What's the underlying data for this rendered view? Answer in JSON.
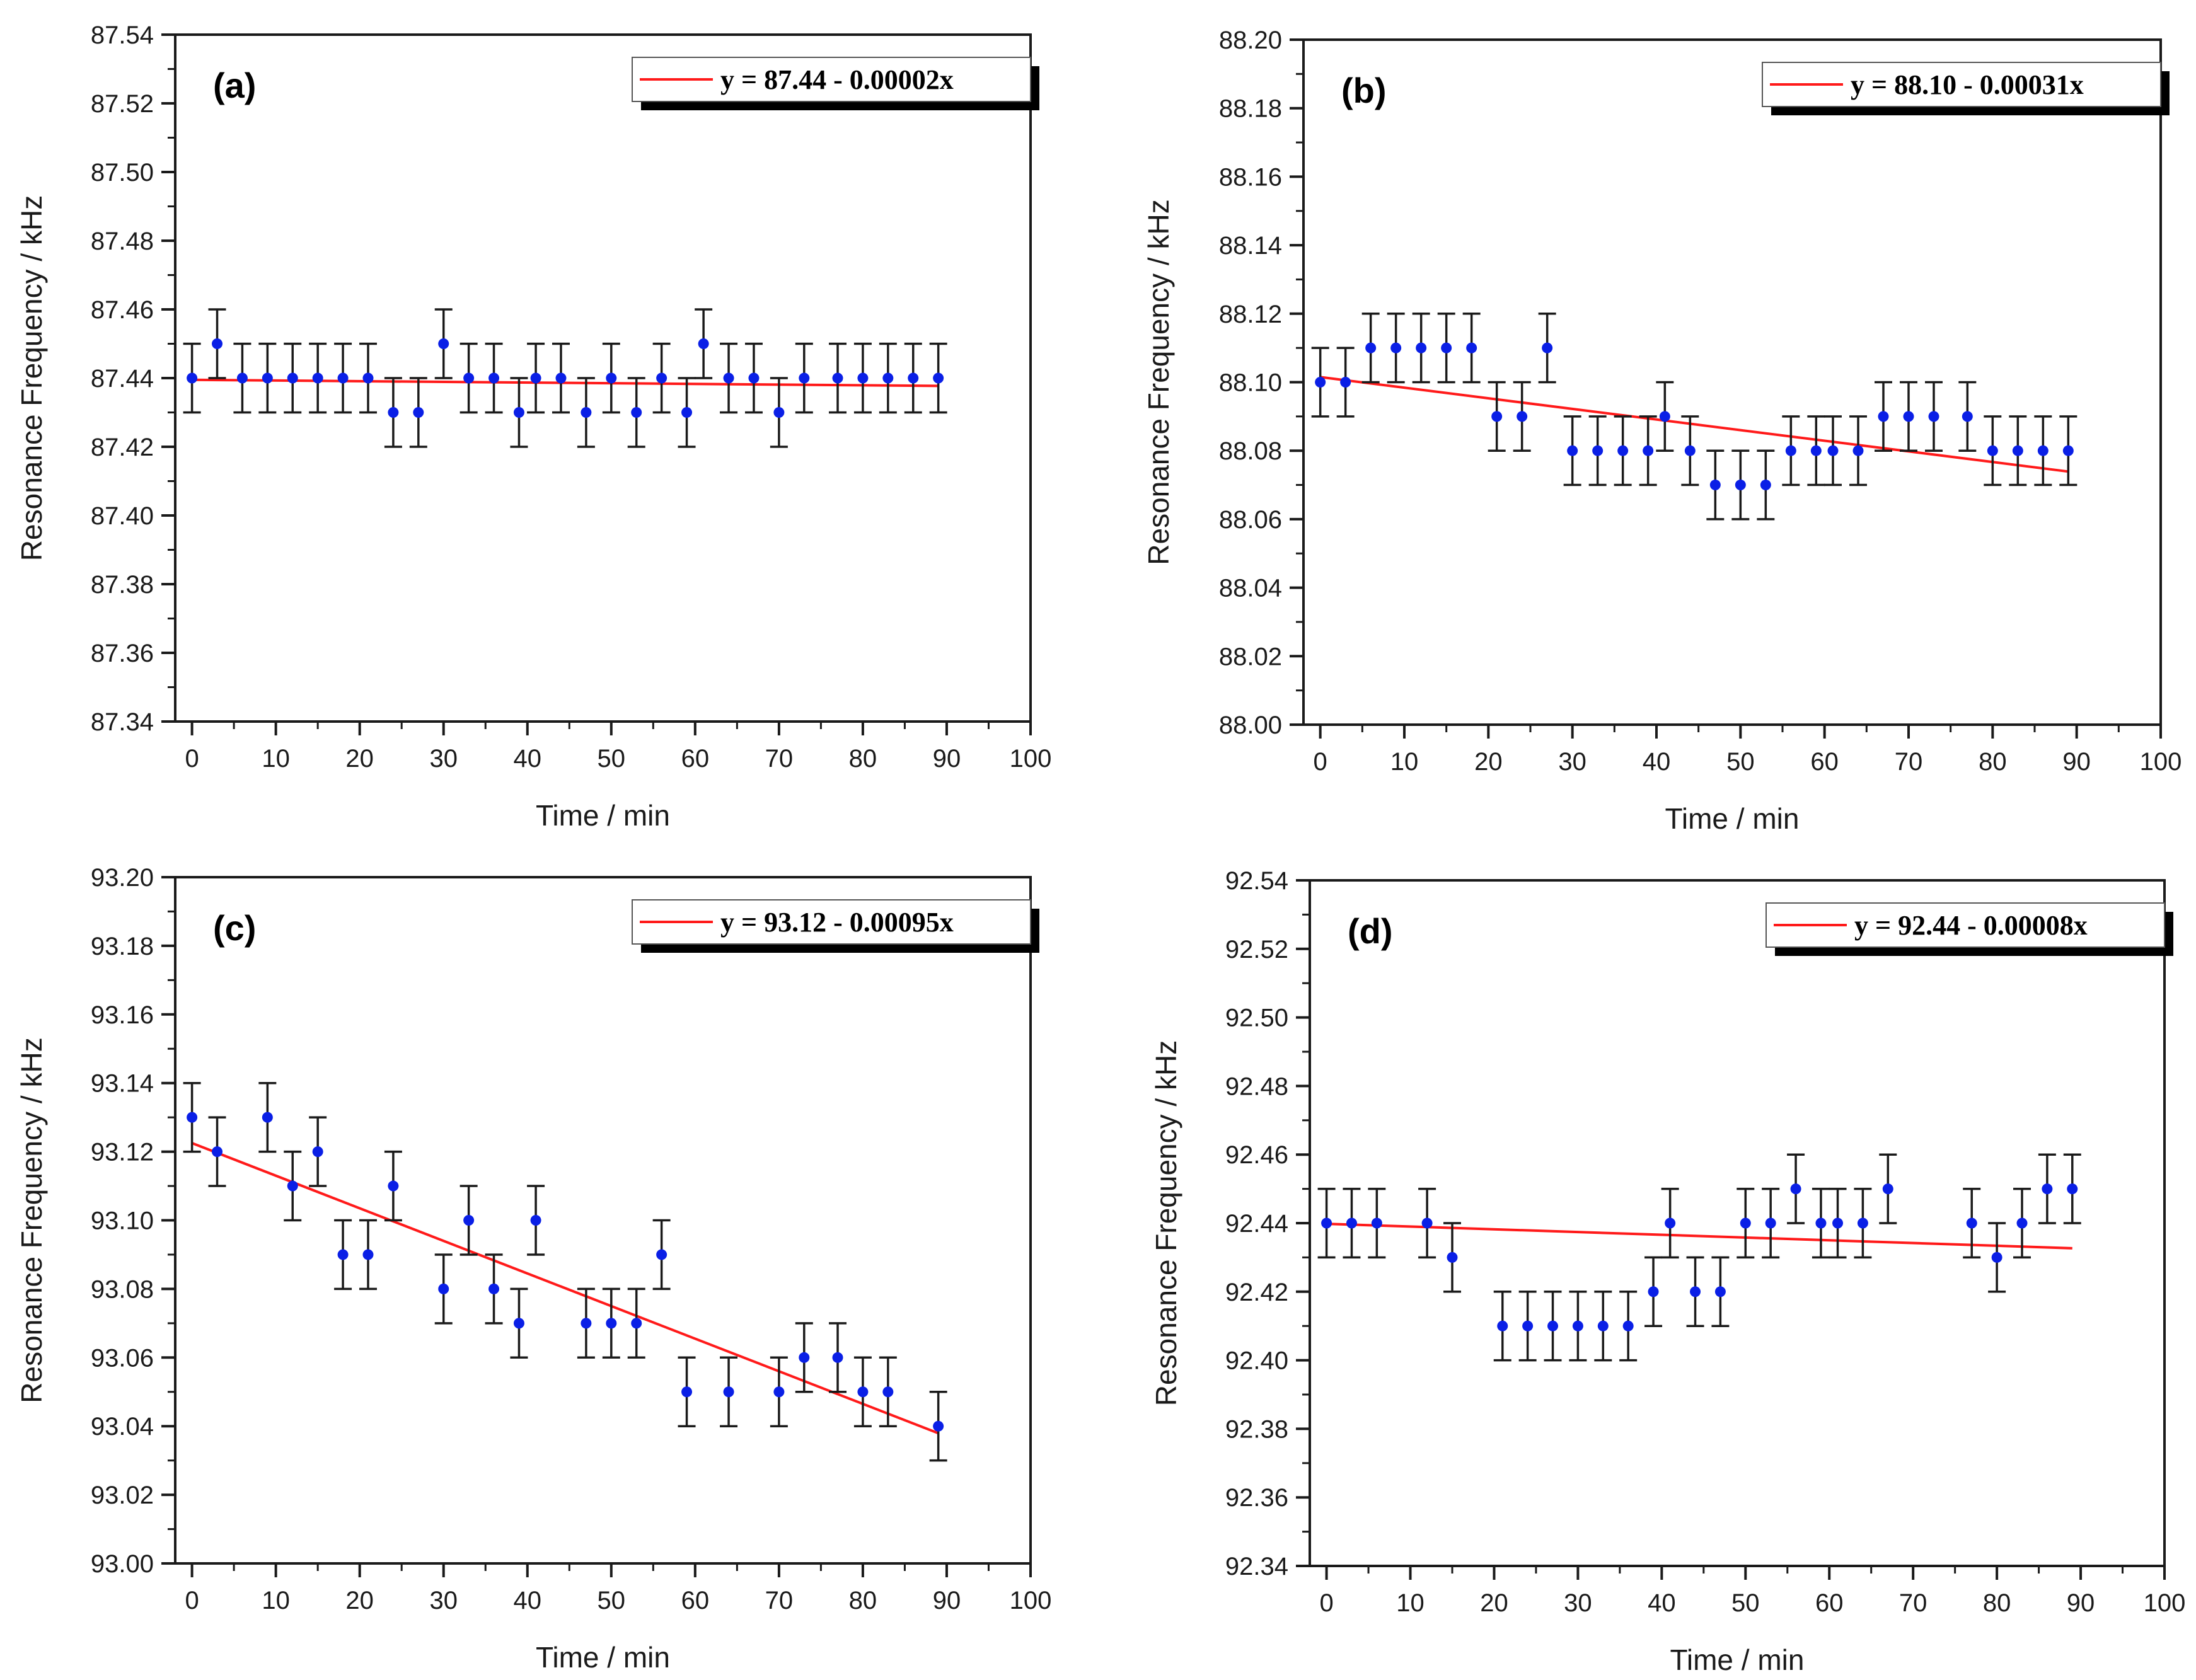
{
  "figure": {
    "background": "#ffffff"
  },
  "colors": {
    "point": "#0a1fe6",
    "fit": "#ff1a1a",
    "error": "#1a1a1a",
    "axis": "#1a1a1a"
  },
  "chart_data": [
    {
      "type": "scatter",
      "panel": "(a)",
      "xlabel": "Time / min",
      "ylabel": "Resonance Frequency / kHz",
      "xlim": [
        0,
        100
      ],
      "ylim": [
        87.34,
        87.54
      ],
      "xticks": [
        "0",
        "10",
        "20",
        "30",
        "40",
        "50",
        "60",
        "70",
        "80",
        "90",
        "100"
      ],
      "yticks": [
        "87.34",
        "87.36",
        "87.38",
        "87.40",
        "87.42",
        "87.44",
        "87.46",
        "87.48",
        "87.50",
        "87.52",
        "87.54"
      ],
      "error": 0.01,
      "fit": {
        "label": "y = 87.44 - 0.00002x",
        "intercept": 87.4395,
        "slope": -2e-05,
        "x": [
          0,
          89
        ]
      },
      "x": [
        0,
        3,
        6,
        9,
        12,
        15,
        18,
        21,
        24,
        27,
        30,
        33,
        36,
        39,
        41,
        44,
        47,
        50,
        53,
        56,
        59,
        61,
        64,
        67,
        70,
        73,
        77,
        80,
        83,
        86,
        89
      ],
      "y": [
        87.44,
        87.45,
        87.44,
        87.44,
        87.44,
        87.44,
        87.44,
        87.44,
        87.43,
        87.43,
        87.45,
        87.44,
        87.44,
        87.43,
        87.44,
        87.44,
        87.43,
        87.44,
        87.43,
        87.44,
        87.43,
        87.45,
        87.44,
        87.44,
        87.43,
        87.44,
        87.44,
        87.44,
        87.44,
        87.44,
        87.44
      ]
    },
    {
      "type": "scatter",
      "panel": "(b)",
      "xlabel": "Time / min",
      "ylabel": "Resonance Frequency / kHz",
      "xlim": [
        0,
        100
      ],
      "ylim": [
        88.0,
        88.2
      ],
      "xticks": [
        "0",
        "10",
        "20",
        "30",
        "40",
        "50",
        "60",
        "70",
        "80",
        "90",
        "100"
      ],
      "yticks": [
        "88.00",
        "88.02",
        "88.04",
        "88.06",
        "88.08",
        "88.10",
        "88.12",
        "88.14",
        "88.16",
        "88.18",
        "88.20"
      ],
      "error": 0.01,
      "fit": {
        "label": "y = 88.10 - 0.00031x",
        "intercept": 88.1015,
        "slope": -0.00031,
        "x": [
          0,
          89
        ]
      },
      "x": [
        0,
        3,
        6,
        9,
        12,
        15,
        18,
        21,
        24,
        27,
        30,
        33,
        36,
        39,
        41,
        44,
        47,
        50,
        53,
        56,
        59,
        61,
        64,
        67,
        70,
        73,
        77,
        80,
        83,
        86,
        89
      ],
      "y": [
        88.1,
        88.1,
        88.11,
        88.11,
        88.11,
        88.11,
        88.11,
        88.09,
        88.09,
        88.11,
        88.08,
        88.08,
        88.08,
        88.08,
        88.09,
        88.08,
        88.07,
        88.07,
        88.07,
        88.08,
        88.08,
        88.08,
        88.08,
        88.09,
        88.09,
        88.09,
        88.09,
        88.08,
        88.08,
        88.08,
        88.08
      ]
    },
    {
      "type": "scatter",
      "panel": "(c)",
      "xlabel": "Time / min",
      "ylabel": "Resonance Frequency / kHz",
      "xlim": [
        0,
        100
      ],
      "ylim": [
        93.0,
        93.2
      ],
      "xticks": [
        "0",
        "10",
        "20",
        "30",
        "40",
        "50",
        "60",
        "70",
        "80",
        "90",
        "100"
      ],
      "yticks": [
        "93.00",
        "93.02",
        "93.04",
        "93.06",
        "93.08",
        "93.10",
        "93.12",
        "93.14",
        "93.16",
        "93.18",
        "93.20"
      ],
      "error": 0.01,
      "fit": {
        "label": "y = 93.12 - 0.00095x",
        "intercept": 93.1225,
        "slope": -0.00095,
        "x": [
          0,
          89
        ]
      },
      "x": [
        0,
        3,
        9,
        12,
        15,
        18,
        21,
        24,
        30,
        33,
        36,
        39,
        41,
        47,
        50,
        53,
        56,
        59,
        64,
        70,
        73,
        77,
        80,
        83,
        89
      ],
      "y": [
        93.13,
        93.12,
        93.13,
        93.11,
        93.12,
        93.09,
        93.09,
        93.11,
        93.08,
        93.1,
        93.08,
        93.07,
        93.1,
        93.07,
        93.07,
        93.07,
        93.09,
        93.05,
        93.05,
        93.05,
        93.06,
        93.06,
        93.05,
        93.05,
        93.04
      ]
    },
    {
      "type": "scatter",
      "panel": "(d)",
      "xlabel": "Time / min",
      "ylabel": "Resonance Frequency / kHz",
      "xlim": [
        0,
        100
      ],
      "ylim": [
        92.34,
        92.54
      ],
      "xticks": [
        "0",
        "10",
        "20",
        "30",
        "40",
        "50",
        "60",
        "70",
        "80",
        "90",
        "100"
      ],
      "yticks": [
        "92.34",
        "92.36",
        "92.38",
        "92.40",
        "92.42",
        "92.44",
        "92.46",
        "92.48",
        "92.50",
        "92.52",
        "92.54"
      ],
      "error": 0.01,
      "fit": {
        "label": "y = 92.44 - 0.00008x",
        "intercept": 92.4398,
        "slope": -8e-05,
        "x": [
          0,
          89
        ]
      },
      "x": [
        0,
        3,
        6,
        12,
        15,
        21,
        24,
        27,
        30,
        33,
        36,
        39,
        41,
        44,
        47,
        50,
        53,
        56,
        59,
        61,
        64,
        67,
        77,
        80,
        83,
        86,
        89
      ],
      "y": [
        92.44,
        92.44,
        92.44,
        92.44,
        92.43,
        92.41,
        92.41,
        92.41,
        92.41,
        92.41,
        92.41,
        92.42,
        92.44,
        92.42,
        92.42,
        92.44,
        92.44,
        92.45,
        92.44,
        92.44,
        92.44,
        92.45,
        92.44,
        92.43,
        92.44,
        92.45,
        92.45
      ]
    }
  ]
}
